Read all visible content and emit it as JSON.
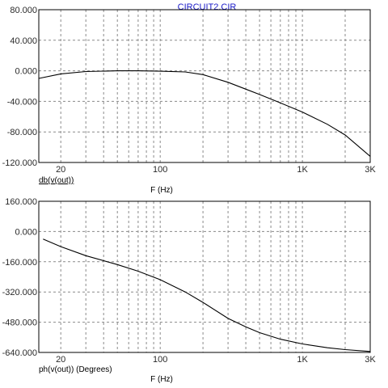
{
  "title": "CIRCUIT2.CIR",
  "chart_data": [
    {
      "type": "line",
      "xscale": "log",
      "xlim": [
        14,
        3000
      ],
      "ylim": [
        -120,
        80
      ],
      "xticks": [
        20,
        100,
        1000,
        3000
      ],
      "xtick_labels": [
        "20",
        "100",
        "1K",
        "3K"
      ],
      "yticks": [
        80,
        40,
        0,
        -40,
        -80,
        -120
      ],
      "ytick_labels": [
        "80.000",
        "40.000",
        "0.000",
        "-40.000",
        "-80.000",
        "-120.000"
      ],
      "ylabel": "db(v(out))",
      "xlabel": "F (Hz)",
      "grid": true,
      "series": [
        {
          "x": [
            14,
            20,
            30,
            50,
            70,
            100,
            150,
            200,
            300,
            400,
            500,
            700,
            1000,
            1500,
            2000,
            3000
          ],
          "y": [
            -10,
            -4,
            -1,
            0,
            0,
            -0.5,
            -1.5,
            -5,
            -15,
            -24,
            -31,
            -42,
            -54,
            -70,
            -84,
            -112
          ]
        }
      ]
    },
    {
      "type": "line",
      "xscale": "log",
      "xlim": [
        14,
        3000
      ],
      "ylim": [
        -640,
        160
      ],
      "xticks": [
        20,
        100,
        1000,
        3000
      ],
      "xtick_labels": [
        "20",
        "100",
        "1K",
        "3K"
      ],
      "yticks": [
        160,
        0,
        -160,
        -320,
        -480,
        -640
      ],
      "ytick_labels": [
        "160.000",
        "0.000",
        "-160.000",
        "-320.000",
        "-480.000",
        "-640.000"
      ],
      "ylabel": "ph(v(out)) (Degrees)",
      "xlabel": "F (Hz)",
      "grid": true,
      "series": [
        {
          "x": [
            15,
            20,
            30,
            50,
            70,
            100,
            150,
            200,
            300,
            400,
            500,
            700,
            1000,
            1500,
            2000,
            3000
          ],
          "y": [
            -40,
            -80,
            -128,
            -175,
            -210,
            -255,
            -320,
            -375,
            -460,
            -505,
            -535,
            -570,
            -595,
            -615,
            -625,
            -635
          ]
        }
      ]
    }
  ]
}
